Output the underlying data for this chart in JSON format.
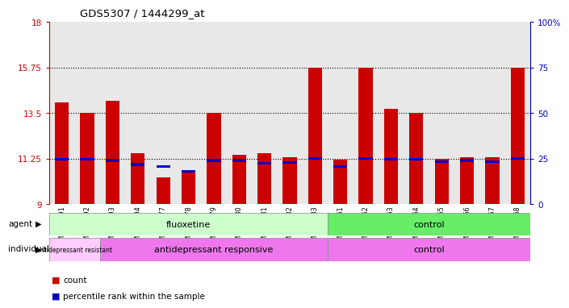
{
  "title": "GDS5307 / 1444299_at",
  "samples": [
    "GSM1059591",
    "GSM1059592",
    "GSM1059593",
    "GSM1059594",
    "GSM1059577",
    "GSM1059578",
    "GSM1059579",
    "GSM1059580",
    "GSM1059581",
    "GSM1059582",
    "GSM1059583",
    "GSM1059561",
    "GSM1059562",
    "GSM1059563",
    "GSM1059564",
    "GSM1059565",
    "GSM1059566",
    "GSM1059567",
    "GSM1059568"
  ],
  "count_values": [
    14.0,
    13.5,
    14.1,
    11.5,
    10.3,
    10.55,
    13.5,
    11.45,
    11.5,
    11.3,
    15.75,
    11.2,
    15.75,
    13.7,
    13.5,
    11.25,
    11.3,
    11.3,
    15.75
  ],
  "percentile_values": [
    11.2,
    11.2,
    11.15,
    10.95,
    10.85,
    10.6,
    11.15,
    11.15,
    11.0,
    11.05,
    11.25,
    10.85,
    11.25,
    11.2,
    11.2,
    11.1,
    11.15,
    11.1,
    11.25
  ],
  "ymin": 9,
  "ymax": 18,
  "yticks": [
    9,
    11.25,
    13.5,
    15.75,
    18
  ],
  "ytick_labels": [
    "9",
    "11.25",
    "13.5",
    "15.75",
    "18"
  ],
  "right_yticks": [
    0,
    25,
    50,
    75,
    100
  ],
  "right_ytick_labels": [
    "0",
    "25",
    "50",
    "75",
    "100%"
  ],
  "dotted_lines": [
    11.25,
    13.5,
    15.75
  ],
  "bar_color": "#cc0000",
  "percentile_color": "#0000cc",
  "bar_bottom": 9,
  "fluox_count": 11,
  "resist_count": 2,
  "agent_fluoxetine_label": "fluoxetine",
  "agent_control_label": "control",
  "individual_resistant_label": "antidepressant resistant",
  "individual_responsive_label": "antidepressant responsive",
  "individual_control_label": "control",
  "agent_fluoxetine_color": "#ccffcc",
  "agent_control_color": "#66ee66",
  "individual_resistant_color": "#ffccff",
  "individual_responsive_color": "#ee77ee",
  "individual_control_color": "#ee77ee",
  "legend_count_color": "#cc0000",
  "legend_percentile_color": "#0000cc",
  "bar_width": 0.55,
  "plot_bg_color": "#e8e8e8",
  "left_axis_color": "#cc0000",
  "right_axis_color": "#0000cc"
}
